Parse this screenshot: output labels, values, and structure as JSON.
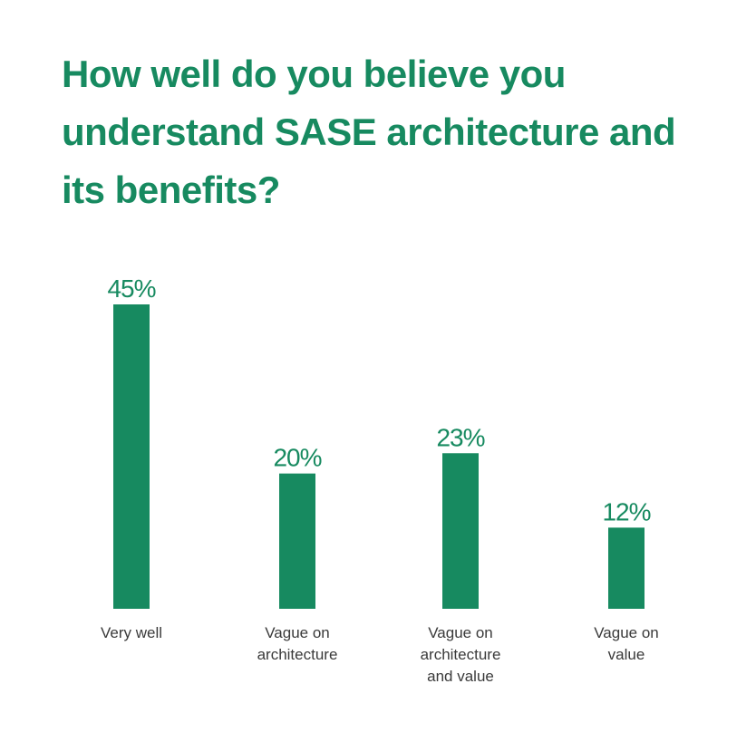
{
  "chart_data": {
    "type": "bar",
    "title": "How well do you believe you understand SASE architecture and its benefits?",
    "categories": [
      [
        "Very well"
      ],
      [
        "Vague on",
        "architecture"
      ],
      [
        "Vague on",
        "architecture",
        "and value"
      ],
      [
        "Vague on",
        "value"
      ]
    ],
    "values": [
      45,
      20,
      23,
      12
    ],
    "value_labels": [
      "45%",
      "20%",
      "23%",
      "12%"
    ],
    "ylim": [
      0,
      45
    ],
    "grid": false,
    "legend": "none",
    "colors": {
      "bar": "#178a60",
      "title": "#178a60",
      "value_label": "#178a60",
      "category_label": "#3a3a3a"
    }
  }
}
